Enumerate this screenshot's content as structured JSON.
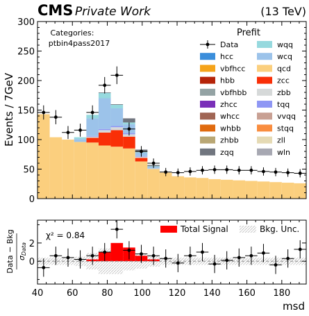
{
  "header": {
    "experiment": "CMS",
    "label": "Private Work",
    "energy": "(13 TeV)"
  },
  "annotations": {
    "categories_label": "Categories:",
    "category": "ptbin4pass2017",
    "legend_title": "Prefit",
    "chi2": "χ² = 0.84"
  },
  "colors": {
    "qcd": "#fbcf7e",
    "wcq": "#9cc3ea",
    "wqq": "#96d9de",
    "zcc": "#f92f07",
    "zbb": "#d6d9d9",
    "tqq": "#8f97f4",
    "vvqq": "#c8a093",
    "stqq": "#f98d3f",
    "zll": "#e5dab4",
    "wln": "#a7a8b2",
    "zqq": "#71767f",
    "signal": "#ff0000"
  },
  "chart_data": [
    {
      "type": "area",
      "subtype": "stacked-histogram",
      "ylabel": "Events / 7GeV",
      "xlim": [
        40,
        194
      ],
      "ylim": [
        0,
        300
      ],
      "yticks": [
        0,
        50,
        100,
        150,
        200,
        250,
        300
      ],
      "bin_edges": [
        40,
        47,
        54,
        61,
        68,
        75,
        82,
        89,
        96,
        103,
        110,
        117,
        124,
        131,
        138,
        145,
        152,
        159,
        166,
        173,
        180,
        187,
        194
      ],
      "legend": {
        "placement": "top-right",
        "left_column": [
          "Data",
          "hcc",
          "vbfhcc",
          "hbb",
          "vbfhbb",
          "zhcc",
          "whcc",
          "whbb",
          "zhbb",
          "zqq"
        ],
        "right_column": [
          "wqq",
          "wcq",
          "qcd",
          "zcc",
          "zbb",
          "tqq",
          "vvqq",
          "stqq",
          "zll",
          "wln"
        ]
      },
      "series": [
        {
          "name": "qcd",
          "values": [
            143,
            104,
            100,
            96,
            95,
            90,
            88,
            85,
            63,
            50,
            44,
            38,
            36,
            35,
            33,
            32,
            31,
            30,
            29,
            28,
            27,
            26
          ]
        },
        {
          "name": "zcc",
          "values": [
            0,
            0,
            0,
            0,
            8,
            22,
            28,
            20,
            6,
            0,
            0,
            0,
            0,
            0,
            0,
            0,
            0,
            0,
            0,
            0,
            0,
            0
          ]
        },
        {
          "name": "zbb",
          "values": [
            0,
            0,
            0,
            0,
            2,
            4,
            5,
            4,
            2,
            1,
            0,
            0,
            0,
            0,
            0,
            0,
            0,
            0,
            0,
            0,
            0,
            0
          ]
        },
        {
          "name": "tqq",
          "values": [
            0,
            0,
            0,
            0,
            1,
            2,
            2,
            2,
            1,
            0,
            0,
            0,
            0,
            0,
            0,
            0,
            0,
            0,
            0,
            0,
            0,
            0
          ]
        },
        {
          "name": "wcq",
          "values": [
            0,
            0,
            0,
            5,
            30,
            52,
            30,
            15,
            6,
            3,
            0,
            0,
            0,
            0,
            0,
            0,
            0,
            0,
            0,
            0,
            0,
            0
          ]
        },
        {
          "name": "wqq",
          "values": [
            0,
            0,
            0,
            3,
            6,
            9,
            6,
            3,
            1,
            1,
            0,
            0,
            0,
            0,
            0,
            0,
            0,
            0,
            0,
            0,
            0,
            0
          ]
        },
        {
          "name": "zqq",
          "values": [
            0,
            0,
            0,
            0,
            0,
            1,
            1,
            7,
            4,
            2,
            0,
            0,
            0,
            0,
            0,
            0,
            0,
            0,
            0,
            0,
            0,
            0
          ]
        }
      ],
      "data": {
        "name": "Data",
        "values": [
          146,
          138,
          112,
          116,
          146,
          192,
          209,
          118,
          80,
          60,
          45,
          44,
          46,
          48,
          49,
          49,
          48,
          48,
          46,
          45,
          44,
          43
        ],
        "errors": [
          12,
          12,
          11,
          11,
          12,
          14,
          15,
          11,
          9,
          8,
          7,
          7,
          7,
          7,
          7,
          7,
          7,
          7,
          7,
          7,
          7,
          7
        ]
      }
    },
    {
      "type": "bar",
      "subtype": "residual",
      "ylabel": "Data - Bkg / σ_Data",
      "xlabel": "msd",
      "xlim": [
        40,
        194
      ],
      "ylim": [
        -2.5,
        4.5
      ],
      "yticks": [
        0,
        2
      ],
      "xticks": [
        40,
        60,
        80,
        100,
        120,
        140,
        160,
        180
      ],
      "legend": [
        "Total Signal",
        "Bkg. Unc."
      ],
      "signal_values": [
        0,
        0,
        0,
        0,
        0.2,
        1.0,
        2.0,
        1.5,
        0.6,
        0.2,
        0,
        0,
        0,
        0,
        0,
        0,
        0,
        0,
        0,
        0,
        0,
        0
      ],
      "residuals": [
        -0.7,
        0.6,
        0.4,
        0.2,
        0.6,
        1.0,
        3.5,
        1.2,
        0.8,
        0.6,
        0.3,
        -0.2,
        0.6,
        1.0,
        -0.3,
        0.1,
        0.4,
        0.6,
        0.9,
        -0.4,
        0.3,
        1.3
      ],
      "residual_errors": [
        1,
        1,
        1,
        1,
        1,
        1,
        1,
        1,
        1,
        1,
        1,
        1,
        1,
        1,
        1,
        1,
        1,
        1,
        1,
        1,
        1,
        1
      ],
      "bkg_unc": [
        0.4,
        0.4,
        0.4,
        0.5,
        0.9,
        1.4,
        1.4,
        1.0,
        0.8,
        0.6,
        0.4,
        0.4,
        0.4,
        0.4,
        0.4,
        0.4,
        0.4,
        0.4,
        0.4,
        0.4,
        0.4,
        0.4
      ]
    }
  ]
}
